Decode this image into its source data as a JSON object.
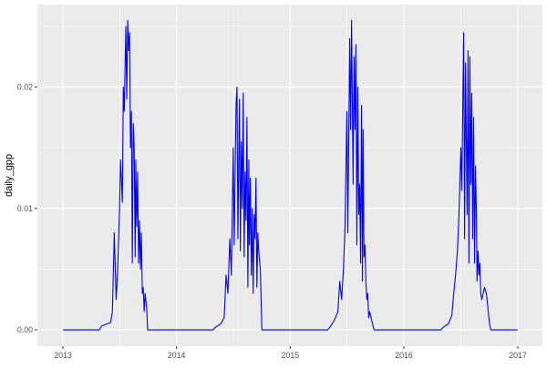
{
  "chart_data": {
    "type": "line",
    "title": "",
    "xlabel": "",
    "ylabel": "daily_gpp",
    "xlim": [
      "2012-10-11",
      "2017-03-21"
    ],
    "ylim": [
      -0.00135,
      0.0268
    ],
    "x_ticks": [
      {
        "date": "2013-01-01",
        "label": "2013"
      },
      {
        "date": "2014-01-01",
        "label": "2014"
      },
      {
        "date": "2015-01-01",
        "label": "2015"
      },
      {
        "date": "2016-01-01",
        "label": "2016"
      },
      {
        "date": "2017-01-01",
        "label": "2017"
      }
    ],
    "y_ticks": [
      {
        "value": 0,
        "label": "0.00"
      },
      {
        "value": 0.01,
        "label": "0.01"
      },
      {
        "value": 0.02,
        "label": "0.02"
      }
    ],
    "grid": true,
    "colors": {
      "line": "#0000FF",
      "panel": "#EBEBEB",
      "grid": "#FFFFFF",
      "text": "#4D4D4D"
    },
    "series": [
      {
        "points": [
          [
            "2013-01-01",
            0
          ],
          [
            "2013-04-28",
            0
          ],
          [
            "2013-05-05",
            0.0003
          ],
          [
            "2013-05-23",
            0.0005
          ],
          [
            "2013-06-03",
            0.0006
          ],
          [
            "2013-06-09",
            0.0015
          ],
          [
            "2013-06-15",
            0.008
          ],
          [
            "2013-06-21",
            0.0025
          ],
          [
            "2013-06-26",
            0.005
          ],
          [
            "2013-07-02",
            0.01
          ],
          [
            "2013-07-05",
            0.014
          ],
          [
            "2013-07-11",
            0.0105
          ],
          [
            "2013-07-14",
            0.02
          ],
          [
            "2013-07-17",
            0.018
          ],
          [
            "2013-07-22",
            0.025
          ],
          [
            "2013-07-25",
            0.019
          ],
          [
            "2013-07-28",
            0.0255
          ],
          [
            "2013-07-31",
            0.023
          ],
          [
            "2013-08-03",
            0.0245
          ],
          [
            "2013-08-06",
            0.015
          ],
          [
            "2013-08-09",
            0.018
          ],
          [
            "2013-08-12",
            0.0055
          ],
          [
            "2013-08-15",
            0.017
          ],
          [
            "2013-08-18",
            0.015
          ],
          [
            "2013-08-21",
            0.006
          ],
          [
            "2013-08-23",
            0.014
          ],
          [
            "2013-08-26",
            0.0085
          ],
          [
            "2013-08-29",
            0.013
          ],
          [
            "2013-09-01",
            0.0055
          ],
          [
            "2013-09-04",
            0.009
          ],
          [
            "2013-09-07",
            0.005
          ],
          [
            "2013-09-10",
            0.008
          ],
          [
            "2013-09-13",
            0.003
          ],
          [
            "2013-09-16",
            0.0035
          ],
          [
            "2013-09-19",
            0.0015
          ],
          [
            "2013-09-22",
            0.003
          ],
          [
            "2013-09-27",
            0.0018
          ],
          [
            "2013-09-30",
            0
          ],
          [
            "2014-04-28",
            0
          ],
          [
            "2014-05-05",
            0.0002
          ],
          [
            "2014-05-23",
            0.0005
          ],
          [
            "2014-06-03",
            0.001
          ],
          [
            "2014-06-09",
            0.0045
          ],
          [
            "2014-06-15",
            0.003
          ],
          [
            "2014-06-21",
            0.0075
          ],
          [
            "2014-06-26",
            0.0045
          ],
          [
            "2014-07-02",
            0.015
          ],
          [
            "2014-07-05",
            0.007
          ],
          [
            "2014-07-11",
            0.0185
          ],
          [
            "2014-07-14",
            0.02
          ],
          [
            "2014-07-17",
            0.0075
          ],
          [
            "2014-07-22",
            0.019
          ],
          [
            "2014-07-25",
            0.0065
          ],
          [
            "2014-07-28",
            0.0155
          ],
          [
            "2014-07-31",
            0.01
          ],
          [
            "2014-08-03",
            0.0195
          ],
          [
            "2014-08-06",
            0.006
          ],
          [
            "2014-08-09",
            0.013
          ],
          [
            "2014-08-12",
            0.009
          ],
          [
            "2014-08-15",
            0.0175
          ],
          [
            "2014-08-18",
            0.0035
          ],
          [
            "2014-08-21",
            0.014
          ],
          [
            "2014-08-23",
            0.007
          ],
          [
            "2014-08-26",
            0.0125
          ],
          [
            "2014-08-29",
            0.0045
          ],
          [
            "2014-09-01",
            0.01
          ],
          [
            "2014-09-04",
            0.003
          ],
          [
            "2014-09-07",
            0.0095
          ],
          [
            "2014-09-10",
            0.0075
          ],
          [
            "2014-09-13",
            0.0125
          ],
          [
            "2014-09-16",
            0.0035
          ],
          [
            "2014-09-19",
            0.008
          ],
          [
            "2014-09-22",
            0.0065
          ],
          [
            "2014-09-27",
            0.005
          ],
          [
            "2014-10-02",
            0
          ],
          [
            "2015-05-01",
            0
          ],
          [
            "2015-05-08",
            0.0002
          ],
          [
            "2015-05-23",
            0.0008
          ],
          [
            "2015-06-03",
            0.0015
          ],
          [
            "2015-06-09",
            0.004
          ],
          [
            "2015-06-15",
            0.0025
          ],
          [
            "2015-06-21",
            0.005
          ],
          [
            "2015-06-26",
            0.0085
          ],
          [
            "2015-07-02",
            0.018
          ],
          [
            "2015-07-05",
            0.008
          ],
          [
            "2015-07-11",
            0.024
          ],
          [
            "2015-07-14",
            0.0165
          ],
          [
            "2015-07-17",
            0.0255
          ],
          [
            "2015-07-22",
            0.012
          ],
          [
            "2015-07-25",
            0.0225
          ],
          [
            "2015-07-28",
            0.0165
          ],
          [
            "2015-07-31",
            0.0235
          ],
          [
            "2015-08-03",
            0.007
          ],
          [
            "2015-08-06",
            0.02
          ],
          [
            "2015-08-09",
            0.0095
          ],
          [
            "2015-08-12",
            0.012
          ],
          [
            "2015-08-15",
            0.0055
          ],
          [
            "2015-08-18",
            0.0185
          ],
          [
            "2015-08-21",
            0.004
          ],
          [
            "2015-08-23",
            0.0165
          ],
          [
            "2015-08-26",
            0.006
          ],
          [
            "2015-08-29",
            0.007
          ],
          [
            "2015-09-01",
            0.004
          ],
          [
            "2015-09-04",
            0.0025
          ],
          [
            "2015-09-07",
            0.003
          ],
          [
            "2015-09-10",
            0.001
          ],
          [
            "2015-09-13",
            0.0015
          ],
          [
            "2015-09-27",
            0
          ],
          [
            "2016-04-29",
            0
          ],
          [
            "2016-05-06",
            0.0002
          ],
          [
            "2016-05-23",
            0.0005
          ],
          [
            "2016-06-03",
            0.0012
          ],
          [
            "2016-06-09",
            0.003
          ],
          [
            "2016-06-15",
            0.0045
          ],
          [
            "2016-06-21",
            0.0065
          ],
          [
            "2016-06-26",
            0.0095
          ],
          [
            "2016-07-02",
            0.015
          ],
          [
            "2016-07-05",
            0.0115
          ],
          [
            "2016-07-11",
            0.0245
          ],
          [
            "2016-07-14",
            0.0075
          ],
          [
            "2016-07-17",
            0.022
          ],
          [
            "2016-07-22",
            0.0095
          ],
          [
            "2016-07-25",
            0.023
          ],
          [
            "2016-07-28",
            0.0055
          ],
          [
            "2016-07-31",
            0.0225
          ],
          [
            "2016-08-03",
            0.012
          ],
          [
            "2016-08-06",
            0.0195
          ],
          [
            "2016-08-09",
            0.0075
          ],
          [
            "2016-08-12",
            0.0175
          ],
          [
            "2016-08-15",
            0.0055
          ],
          [
            "2016-08-18",
            0.0135
          ],
          [
            "2016-08-21",
            0.0095
          ],
          [
            "2016-08-23",
            0.004
          ],
          [
            "2016-08-26",
            0.0065
          ],
          [
            "2016-08-29",
            0.0045
          ],
          [
            "2016-09-01",
            0.0055
          ],
          [
            "2016-09-04",
            0.003
          ],
          [
            "2016-09-07",
            0.0025
          ],
          [
            "2016-09-16",
            0.0035
          ],
          [
            "2016-09-22",
            0.003
          ],
          [
            "2016-10-02",
            0.0005
          ],
          [
            "2016-10-06",
            0
          ],
          [
            "2016-12-31",
            0
          ]
        ]
      }
    ]
  }
}
